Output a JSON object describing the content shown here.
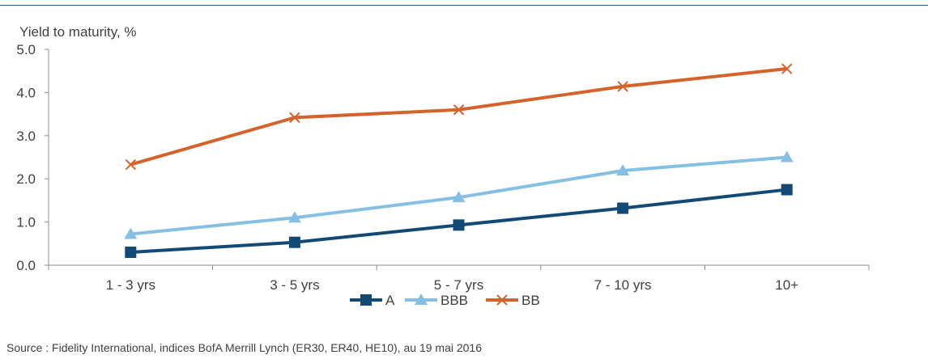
{
  "source_note": "Source : Fidelity International, indices BofA Merrill Lynch (ER30, ER40, HE10), au 19 mai 2016",
  "chart_data": {
    "type": "line",
    "xlabel": "",
    "ylabel": "Yield to maturity, %",
    "categories": [
      "1 - 3 yrs",
      "3 - 5 yrs",
      "5 - 7 yrs",
      "7 - 10 yrs",
      "10+"
    ],
    "ylim": [
      0,
      5
    ],
    "yticks": [
      "0.0",
      "1.0",
      "2.0",
      "3.0",
      "4.0",
      "5.0"
    ],
    "grid": false,
    "legend_position": "bottom",
    "series": [
      {
        "name": "A",
        "values": [
          0.3,
          0.53,
          0.93,
          1.32,
          1.75
        ],
        "color": "#134a75",
        "marker": "square"
      },
      {
        "name": "BBB",
        "values": [
          0.72,
          1.1,
          1.57,
          2.19,
          2.5
        ],
        "color": "#85bfe3",
        "marker": "triangle"
      },
      {
        "name": "BB",
        "values": [
          2.33,
          3.42,
          3.6,
          4.14,
          4.55
        ],
        "color": "#d5622a",
        "marker": "x"
      }
    ]
  }
}
